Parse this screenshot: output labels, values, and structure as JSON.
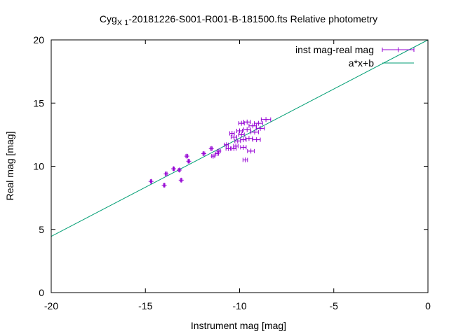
{
  "chart_data": {
    "type": "scatter",
    "title": {
      "prefix": "Cyg",
      "subscript": "X 1",
      "suffix": "-20181226-S001-R001-B-181500.fts Relative photometry"
    },
    "xlabel": "Instrument mag [mag]",
    "ylabel": "Real mag [mag]",
    "xlim": [
      -20,
      0
    ],
    "ylim": [
      0,
      20
    ],
    "xticks": [
      -20,
      -15,
      -10,
      -5,
      0
    ],
    "yticks": [
      0,
      5,
      10,
      15,
      20
    ],
    "xtick_labels": [
      "-20",
      "-15",
      "-10",
      "-5",
      "0"
    ],
    "ytick_labels": [
      "0",
      "5",
      "10",
      "15",
      "20"
    ],
    "grid": false,
    "legend_position": "top-right",
    "series": [
      {
        "name": "inst mag-real mag",
        "kind": "points_with_xerror",
        "color": "#9400d3",
        "points": [
          {
            "x": -14.7,
            "y": 8.8,
            "xerr": 0.03
          },
          {
            "x": -14.0,
            "y": 8.5,
            "xerr": 0.03
          },
          {
            "x": -13.9,
            "y": 9.4,
            "xerr": 0.05
          },
          {
            "x": -13.5,
            "y": 9.8,
            "xerr": 0.04
          },
          {
            "x": -13.1,
            "y": 8.9,
            "xerr": 0.04
          },
          {
            "x": -13.2,
            "y": 9.7,
            "xerr": 0.05
          },
          {
            "x": -12.7,
            "y": 10.4,
            "xerr": 0.04
          },
          {
            "x": -12.8,
            "y": 10.8,
            "xerr": 0.05
          },
          {
            "x": -11.9,
            "y": 11.0,
            "xerr": 0.05
          },
          {
            "x": -11.5,
            "y": 11.4,
            "xerr": 0.05
          },
          {
            "x": -11.4,
            "y": 10.8,
            "xerr": 0.08
          },
          {
            "x": -11.2,
            "y": 11.0,
            "xerr": 0.08
          },
          {
            "x": -11.1,
            "y": 11.2,
            "xerr": 0.08
          },
          {
            "x": -10.7,
            "y": 11.7,
            "xerr": 0.1
          },
          {
            "x": -10.6,
            "y": 11.4,
            "xerr": 0.12
          },
          {
            "x": -10.4,
            "y": 12.6,
            "xerr": 0.12
          },
          {
            "x": -10.3,
            "y": 12.3,
            "xerr": 0.15
          },
          {
            "x": -10.3,
            "y": 11.4,
            "xerr": 0.12
          },
          {
            "x": -10.2,
            "y": 11.6,
            "xerr": 0.12
          },
          {
            "x": -10.1,
            "y": 12.0,
            "xerr": 0.15
          },
          {
            "x": -10.0,
            "y": 12.8,
            "xerr": 0.15
          },
          {
            "x": -9.9,
            "y": 13.4,
            "xerr": 0.15
          },
          {
            "x": -9.9,
            "y": 12.5,
            "xerr": 0.15
          },
          {
            "x": -9.8,
            "y": 12.1,
            "xerr": 0.15
          },
          {
            "x": -9.8,
            "y": 11.5,
            "xerr": 0.15
          },
          {
            "x": -9.7,
            "y": 10.5,
            "xerr": 0.12
          },
          {
            "x": -9.6,
            "y": 13.5,
            "xerr": 0.18
          },
          {
            "x": -9.6,
            "y": 12.9,
            "xerr": 0.18
          },
          {
            "x": -9.5,
            "y": 12.2,
            "xerr": 0.18
          },
          {
            "x": -9.4,
            "y": 11.2,
            "xerr": 0.18
          },
          {
            "x": -9.3,
            "y": 13.2,
            "xerr": 0.2
          },
          {
            "x": -9.2,
            "y": 12.7,
            "xerr": 0.2
          },
          {
            "x": -9.1,
            "y": 12.1,
            "xerr": 0.2
          },
          {
            "x": -9.0,
            "y": 13.4,
            "xerr": 0.22
          },
          {
            "x": -8.9,
            "y": 13.0,
            "xerr": 0.22
          },
          {
            "x": -8.6,
            "y": 13.7,
            "xerr": 0.25
          }
        ]
      },
      {
        "name": "a*x+b",
        "kind": "line",
        "color": "#009e73",
        "points": [
          {
            "x": -20,
            "y": 4.45
          },
          {
            "x": 0,
            "y": 20.0
          }
        ]
      }
    ]
  }
}
